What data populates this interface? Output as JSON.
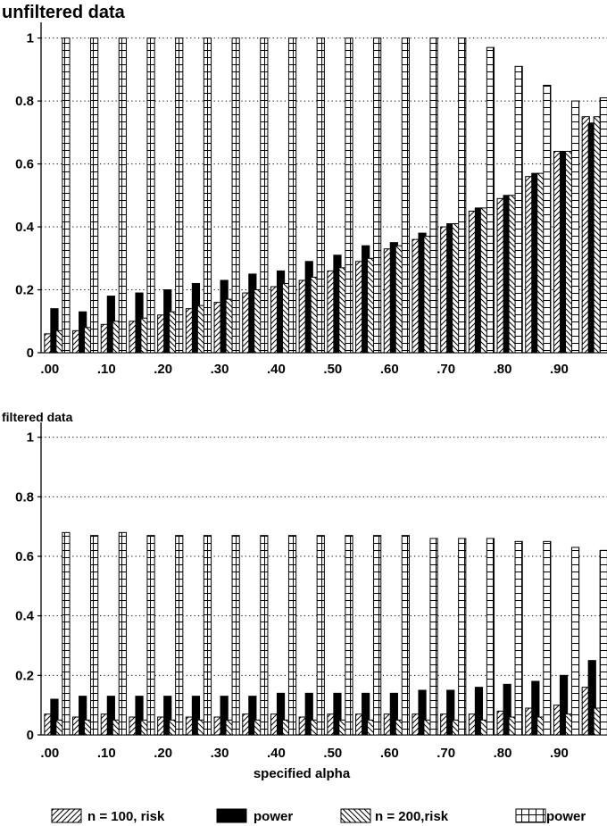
{
  "legend": [
    {
      "label": "n = 100, risk",
      "pattern": "hatch-right"
    },
    {
      "label": "power",
      "pattern": "solid"
    },
    {
      "label": "n = 200,risk",
      "pattern": "hatch-left"
    },
    {
      "label": "power",
      "pattern": "grid"
    }
  ],
  "chart_data": [
    {
      "type": "bar",
      "title": "unfiltered data",
      "xlabel": "",
      "ylim": [
        0,
        1.05
      ],
      "yticks": [
        "0",
        "0.2",
        "0.4",
        "0.6",
        "0.8",
        "1"
      ],
      "xticks": [
        ".00",
        ".10",
        ".20",
        ".30",
        ".40",
        ".50",
        ".60",
        ".70",
        ".80",
        ".90"
      ],
      "grid": "horizontal dotted",
      "categories": [
        "0.00",
        "0.05",
        "0.10",
        "0.15",
        "0.20",
        "0.25",
        "0.30",
        "0.35",
        "0.40",
        "0.45",
        "0.50",
        "0.55",
        "0.60",
        "0.65",
        "0.70",
        "0.75",
        "0.80",
        "0.85",
        "0.90",
        "0.95"
      ],
      "series": [
        {
          "name": "n = 100, risk",
          "values": [
            0.06,
            0.07,
            0.09,
            0.1,
            0.12,
            0.14,
            0.16,
            0.19,
            0.21,
            0.23,
            0.26,
            0.29,
            0.33,
            0.36,
            0.4,
            0.45,
            0.49,
            0.56,
            0.64,
            0.75
          ]
        },
        {
          "name": "power",
          "values": [
            0.14,
            0.13,
            0.18,
            0.19,
            0.2,
            0.22,
            0.23,
            0.25,
            0.26,
            0.29,
            0.31,
            0.34,
            0.35,
            0.38,
            0.41,
            0.46,
            0.5,
            0.57,
            0.64,
            0.73
          ]
        },
        {
          "name": "n = 200,risk",
          "values": [
            0.07,
            0.08,
            0.1,
            0.11,
            0.13,
            0.15,
            0.17,
            0.2,
            0.22,
            0.24,
            0.27,
            0.3,
            0.34,
            0.37,
            0.41,
            0.46,
            0.5,
            0.57,
            0.64,
            0.75
          ]
        },
        {
          "name": "power",
          "values": [
            1.0,
            1.0,
            1.0,
            1.0,
            1.0,
            1.0,
            1.0,
            1.0,
            1.0,
            1.0,
            1.0,
            1.0,
            1.0,
            1.0,
            1.0,
            0.97,
            0.91,
            0.85,
            0.8,
            0.81
          ]
        }
      ]
    },
    {
      "type": "bar",
      "title": "filtered data",
      "xlabel": "specified alpha",
      "ylim": [
        0,
        1.05
      ],
      "yticks": [
        "0",
        "0.2",
        "0.4",
        "0.6",
        "0.8",
        "1"
      ],
      "xticks": [
        ".00",
        ".10",
        ".20",
        ".30",
        ".40",
        ".50",
        ".60",
        ".70",
        ".80",
        ".90"
      ],
      "grid": "horizontal dotted",
      "categories": [
        "0.00",
        "0.05",
        "0.10",
        "0.15",
        "0.20",
        "0.25",
        "0.30",
        "0.35",
        "0.40",
        "0.45",
        "0.50",
        "0.55",
        "0.60",
        "0.65",
        "0.70",
        "0.75",
        "0.80",
        "0.85",
        "0.90",
        "0.95"
      ],
      "series": [
        {
          "name": "n = 100, risk",
          "values": [
            0.07,
            0.06,
            0.07,
            0.06,
            0.06,
            0.06,
            0.06,
            0.07,
            0.07,
            0.06,
            0.07,
            0.07,
            0.07,
            0.07,
            0.07,
            0.07,
            0.08,
            0.09,
            0.1,
            0.16
          ]
        },
        {
          "name": "power",
          "values": [
            0.12,
            0.13,
            0.13,
            0.13,
            0.13,
            0.13,
            0.13,
            0.13,
            0.14,
            0.14,
            0.14,
            0.14,
            0.14,
            0.15,
            0.15,
            0.16,
            0.17,
            0.18,
            0.2,
            0.25
          ]
        },
        {
          "name": "n = 200,risk",
          "values": [
            0.05,
            0.05,
            0.05,
            0.05,
            0.05,
            0.05,
            0.05,
            0.05,
            0.05,
            0.05,
            0.05,
            0.05,
            0.05,
            0.05,
            0.05,
            0.05,
            0.06,
            0.06,
            0.07,
            0.09
          ]
        },
        {
          "name": "power",
          "values": [
            0.68,
            0.67,
            0.68,
            0.67,
            0.67,
            0.67,
            0.67,
            0.67,
            0.67,
            0.67,
            0.67,
            0.67,
            0.67,
            0.66,
            0.66,
            0.66,
            0.65,
            0.65,
            0.63,
            0.62
          ]
        }
      ]
    }
  ]
}
